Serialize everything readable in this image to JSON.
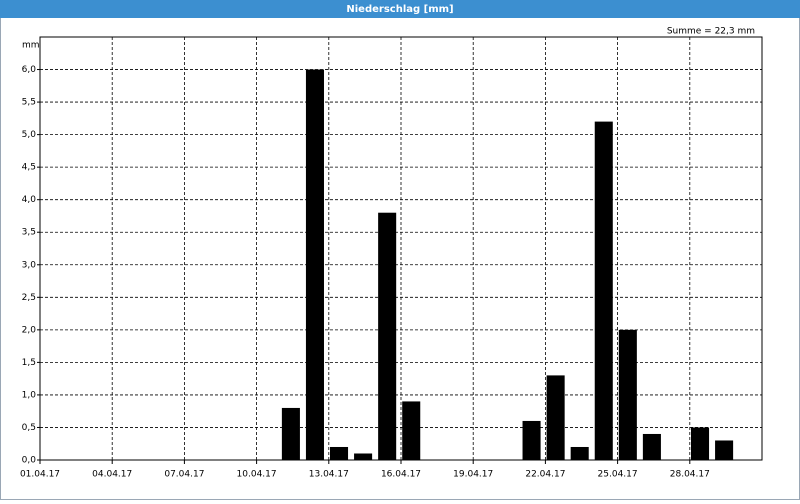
{
  "window_title": "Niederschlag [mm]",
  "chart_data": {
    "type": "bar",
    "annotation": "Summe = 22,3 mm",
    "y_unit": "mm",
    "color": "#000000",
    "grid": true,
    "x": [
      "2017-04-01",
      "2017-04-02",
      "2017-04-03",
      "2017-04-04",
      "2017-04-05",
      "2017-04-06",
      "2017-04-07",
      "2017-04-08",
      "2017-04-09",
      "2017-04-10",
      "2017-04-11",
      "2017-04-12",
      "2017-04-13",
      "2017-04-14",
      "2017-04-15",
      "2017-04-16",
      "2017-04-17",
      "2017-04-18",
      "2017-04-19",
      "2017-04-20",
      "2017-04-21",
      "2017-04-22",
      "2017-04-23",
      "2017-04-24",
      "2017-04-25",
      "2017-04-26",
      "2017-04-27",
      "2017-04-28",
      "2017-04-29",
      "2017-04-30"
    ],
    "values": [
      0,
      0,
      0,
      0,
      0,
      0,
      0,
      0,
      0,
      0,
      0.8,
      6.0,
      0.2,
      0.1,
      3.8,
      0.9,
      0,
      0,
      0,
      0,
      0.6,
      1.3,
      0.2,
      5.2,
      2.0,
      0.4,
      0,
      0.5,
      0.3,
      0
    ],
    "xlim": [
      "2017-04-01",
      "2017-05-01"
    ],
    "xticks": [
      {
        "value": "2017-04-01",
        "label": "01.04.17"
      },
      {
        "value": "2017-04-04",
        "label": "04.04.17"
      },
      {
        "value": "2017-04-07",
        "label": "07.04.17"
      },
      {
        "value": "2017-04-10",
        "label": "10.04.17"
      },
      {
        "value": "2017-04-13",
        "label": "13.04.17"
      },
      {
        "value": "2017-04-16",
        "label": "16.04.17"
      },
      {
        "value": "2017-04-19",
        "label": "19.04.17"
      },
      {
        "value": "2017-04-22",
        "label": "22.04.17"
      },
      {
        "value": "2017-04-25",
        "label": "25.04.17"
      },
      {
        "value": "2017-04-28",
        "label": "28.04.17"
      }
    ],
    "ylim": [
      0,
      6.5
    ],
    "yticks": [
      {
        "value": 0,
        "label": "0,0"
      },
      {
        "value": 0.5,
        "label": "0,5"
      },
      {
        "value": 1,
        "label": "1,0"
      },
      {
        "value": 1.5,
        "label": "1,5"
      },
      {
        "value": 2,
        "label": "2,0"
      },
      {
        "value": 2.5,
        "label": "2,5"
      },
      {
        "value": 3,
        "label": "3,0"
      },
      {
        "value": 3.5,
        "label": "3,5"
      },
      {
        "value": 4,
        "label": "4,0"
      },
      {
        "value": 4.5,
        "label": "4,5"
      },
      {
        "value": 5,
        "label": "5,0"
      },
      {
        "value": 5.5,
        "label": "5,5"
      },
      {
        "value": 6,
        "label": "6,0"
      }
    ]
  }
}
